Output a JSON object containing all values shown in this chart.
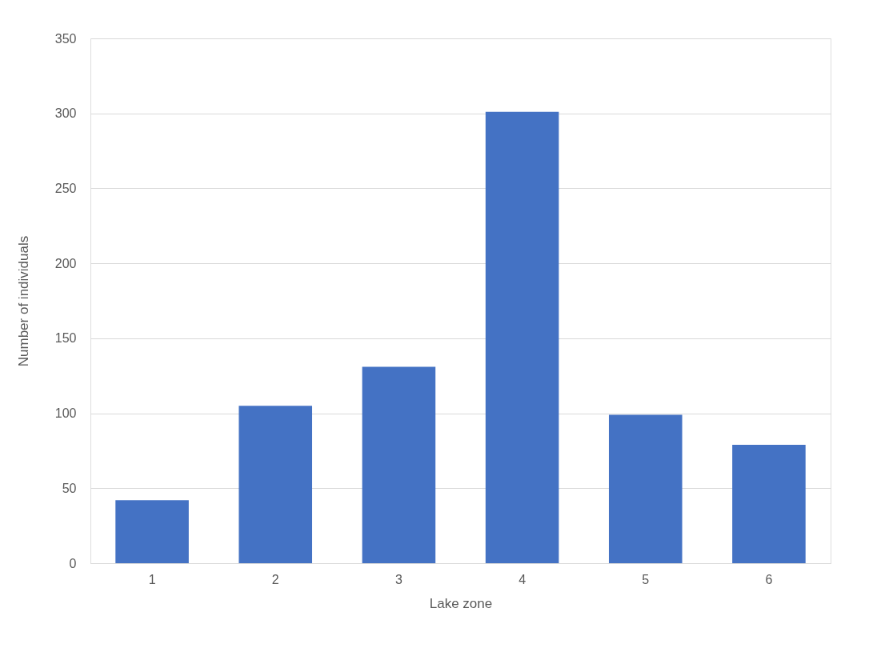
{
  "chart_data": {
    "type": "bar",
    "xlabel": "Lake zone",
    "ylabel": "Number of individuals",
    "categories": [
      "1",
      "2",
      "3",
      "4",
      "5",
      "6"
    ],
    "values": [
      42,
      105,
      131,
      301,
      99,
      79
    ],
    "color": "#4472c4",
    "ylim": [
      0,
      350
    ],
    "yticks": [
      0,
      50,
      100,
      150,
      200,
      250,
      300,
      350
    ],
    "grid": "y"
  }
}
